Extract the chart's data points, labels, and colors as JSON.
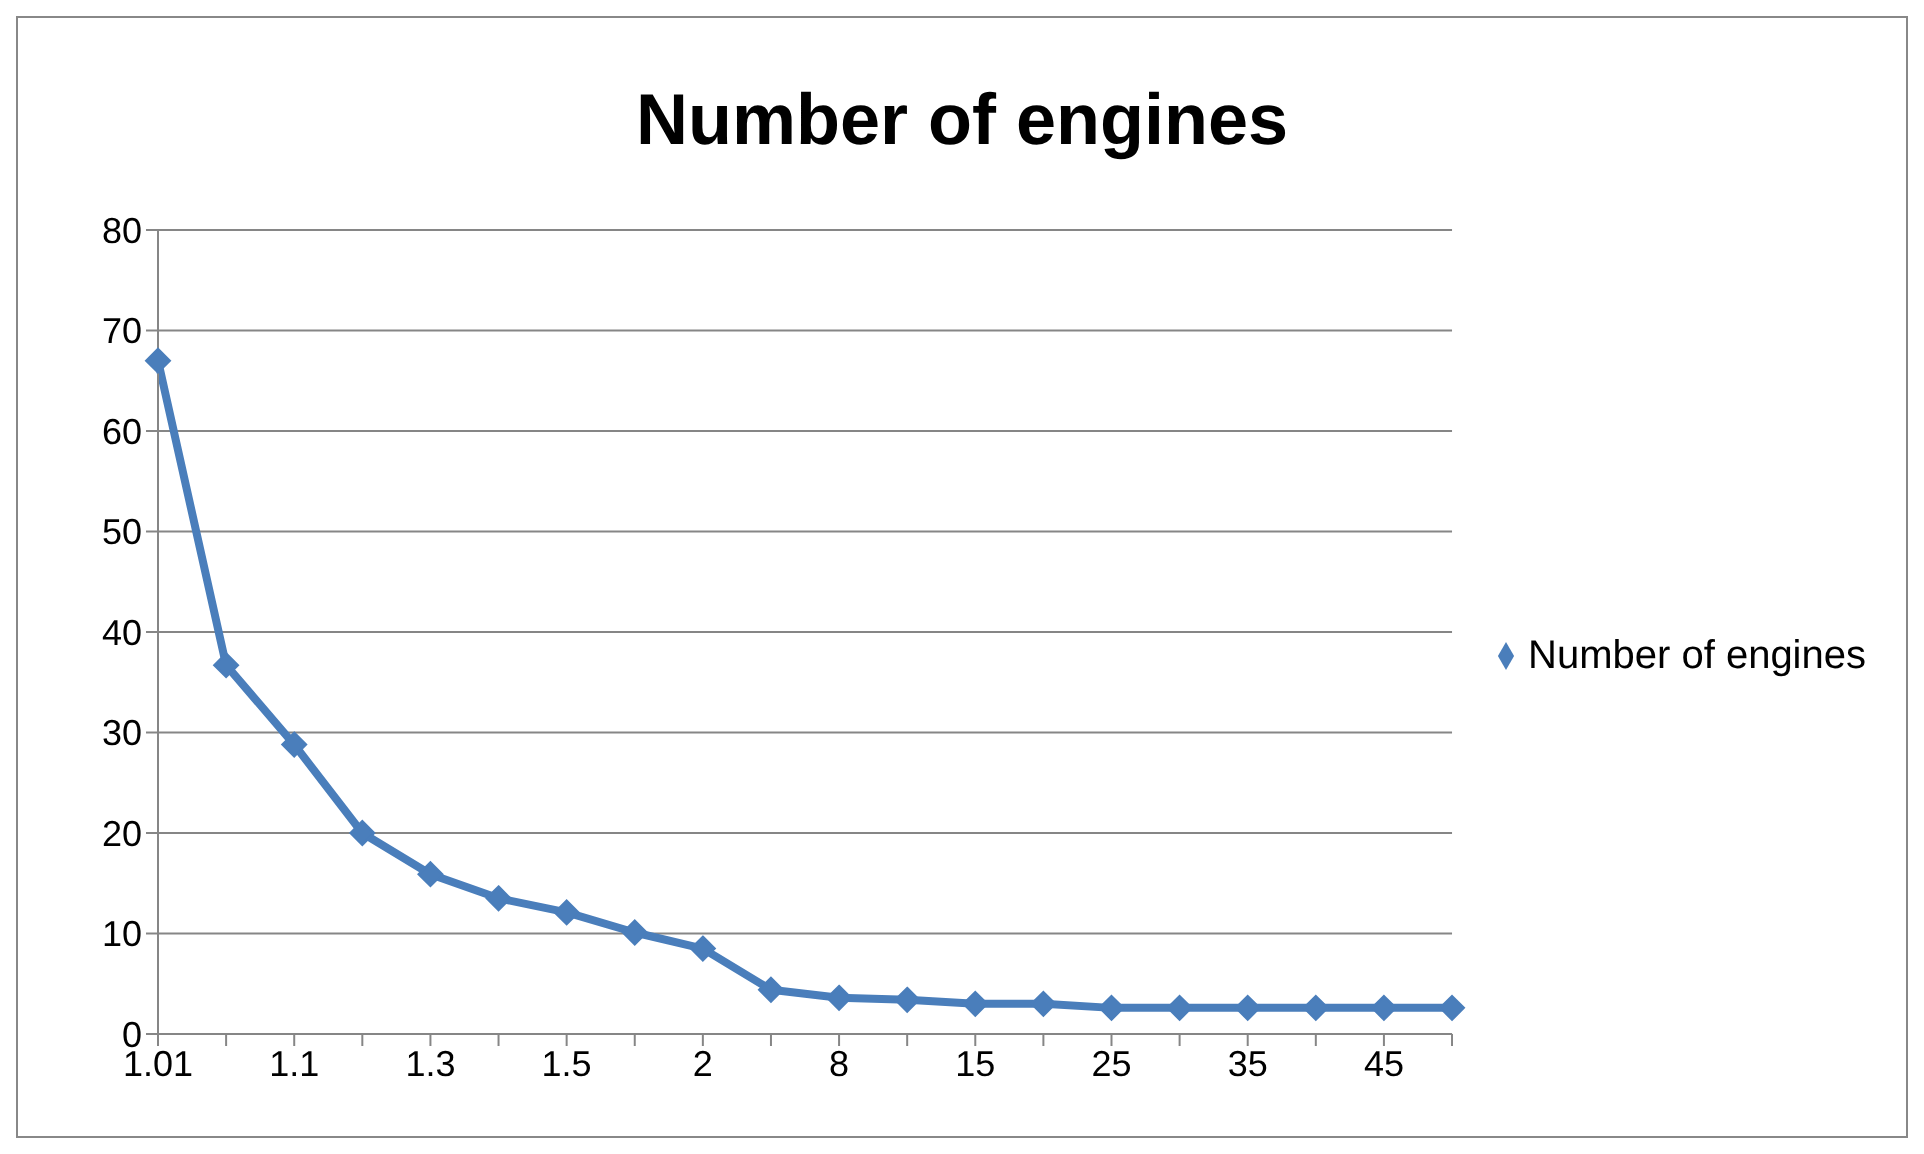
{
  "chart_data": {
    "type": "line",
    "title": "Number of engines",
    "categories": [
      "1.01",
      null,
      "1.1",
      null,
      "1.3",
      null,
      "1.5",
      null,
      "2",
      null,
      "8",
      null,
      "15",
      null,
      "25",
      null,
      "35",
      null,
      "45",
      null
    ],
    "series": [
      {
        "name": "Number of engines",
        "color": "#4a7ebb",
        "values": [
          67,
          36.7,
          28.8,
          20,
          15.9,
          13.5,
          12.1,
          10.1,
          8.5,
          4.4,
          3.6,
          3.4,
          3.0,
          3.0,
          2.6,
          2.6,
          2.6,
          2.6,
          2.6,
          2.6
        ]
      }
    ],
    "ylim": [
      0,
      80
    ],
    "yticks": [
      0,
      10,
      20,
      30,
      40,
      50,
      60,
      70,
      80
    ],
    "grid": "y",
    "legend": "right",
    "marker": "diamond",
    "line_style": "solid"
  }
}
